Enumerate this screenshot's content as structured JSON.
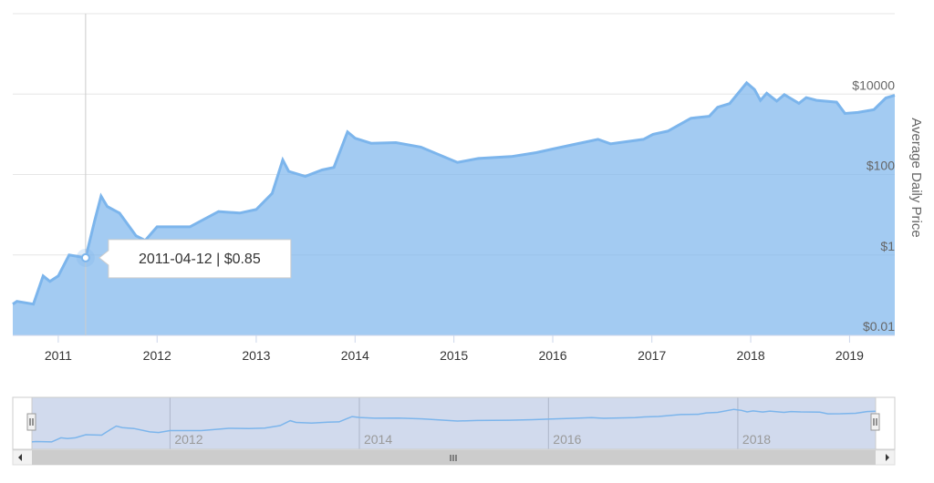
{
  "chart_data": {
    "type": "area",
    "y_axis_title": "Average Daily Price",
    "log_scale": true,
    "grid": true,
    "color": "#7cb5ec",
    "xlim": [
      "2010-07-17",
      "2019-06-17"
    ],
    "xticks": [
      {
        "value": "2011-01-01",
        "label": "2011"
      },
      {
        "value": "2012-01-01",
        "label": "2012"
      },
      {
        "value": "2013-01-01",
        "label": "2013"
      },
      {
        "value": "2014-01-01",
        "label": "2014"
      },
      {
        "value": "2015-01-01",
        "label": "2015"
      },
      {
        "value": "2016-01-01",
        "label": "2016"
      },
      {
        "value": "2017-01-01",
        "label": "2017"
      },
      {
        "value": "2018-01-01",
        "label": "2018"
      },
      {
        "value": "2019-01-01",
        "label": "2019"
      }
    ],
    "ylim": [
      0.01,
      1000000
    ],
    "yticks": [
      {
        "value": 0.01,
        "label": "$0.01"
      },
      {
        "value": 1,
        "label": "$1"
      },
      {
        "value": 100,
        "label": "$100"
      },
      {
        "value": 10000,
        "label": "$10000"
      }
    ],
    "x": [
      "2010-07-17",
      "2010-08-01",
      "2010-10-01",
      "2010-11-06",
      "2010-12-01",
      "2011-01-01",
      "2011-02-10",
      "2011-04-12",
      "2011-05-15",
      "2011-06-08",
      "2011-07-01",
      "2011-08-15",
      "2011-10-15",
      "2011-11-18",
      "2012-01-01",
      "2012-03-01",
      "2012-05-01",
      "2012-08-15",
      "2012-11-01",
      "2013-01-01",
      "2013-03-01",
      "2013-04-09",
      "2013-05-01",
      "2013-07-01",
      "2013-09-01",
      "2013-10-15",
      "2013-12-04",
      "2014-01-01",
      "2014-03-01",
      "2014-06-01",
      "2014-09-01",
      "2015-01-14",
      "2015-04-01",
      "2015-08-01",
      "2015-11-01",
      "2016-01-01",
      "2016-06-16",
      "2016-08-01",
      "2016-12-01",
      "2017-01-05",
      "2017-03-01",
      "2017-05-25",
      "2017-08-01",
      "2017-09-01",
      "2017-10-15",
      "2017-12-17",
      "2018-01-15",
      "2018-02-06",
      "2018-03-01",
      "2018-04-07",
      "2018-05-05",
      "2018-06-28",
      "2018-07-25",
      "2018-09-01",
      "2018-11-14",
      "2018-12-15",
      "2019-02-01",
      "2019-04-01",
      "2019-05-15",
      "2019-06-17"
    ],
    "series": [
      {
        "name": "Average Daily Price",
        "color": "#7cb5ec",
        "values": [
          0.06,
          0.07,
          0.06,
          0.3,
          0.22,
          0.3,
          1.0,
          0.85,
          7,
          29,
          16,
          11,
          3,
          2.3,
          5,
          5,
          5,
          12,
          11,
          13.5,
          34,
          230,
          120,
          90,
          130,
          150,
          1150,
          800,
          600,
          620,
          480,
          200,
          250,
          280,
          350,
          430,
          750,
          580,
          750,
          1000,
          1200,
          2500,
          2800,
          4700,
          5800,
          19000,
          13000,
          7000,
          10500,
          6700,
          9700,
          5900,
          8200,
          7000,
          6300,
          3300,
          3500,
          4100,
          8000,
          9300
        ]
      }
    ],
    "tooltip": {
      "label": "2011-04-12 | $0.85",
      "x": "2011-04-12",
      "value": 0.85
    },
    "navigator": {
      "xticks": [
        {
          "value": "2012-01-01",
          "label": "2012"
        },
        {
          "value": "2014-01-01",
          "label": "2014"
        },
        {
          "value": "2016-01-01",
          "label": "2016"
        },
        {
          "value": "2018-01-01",
          "label": "2018"
        }
      ]
    }
  }
}
